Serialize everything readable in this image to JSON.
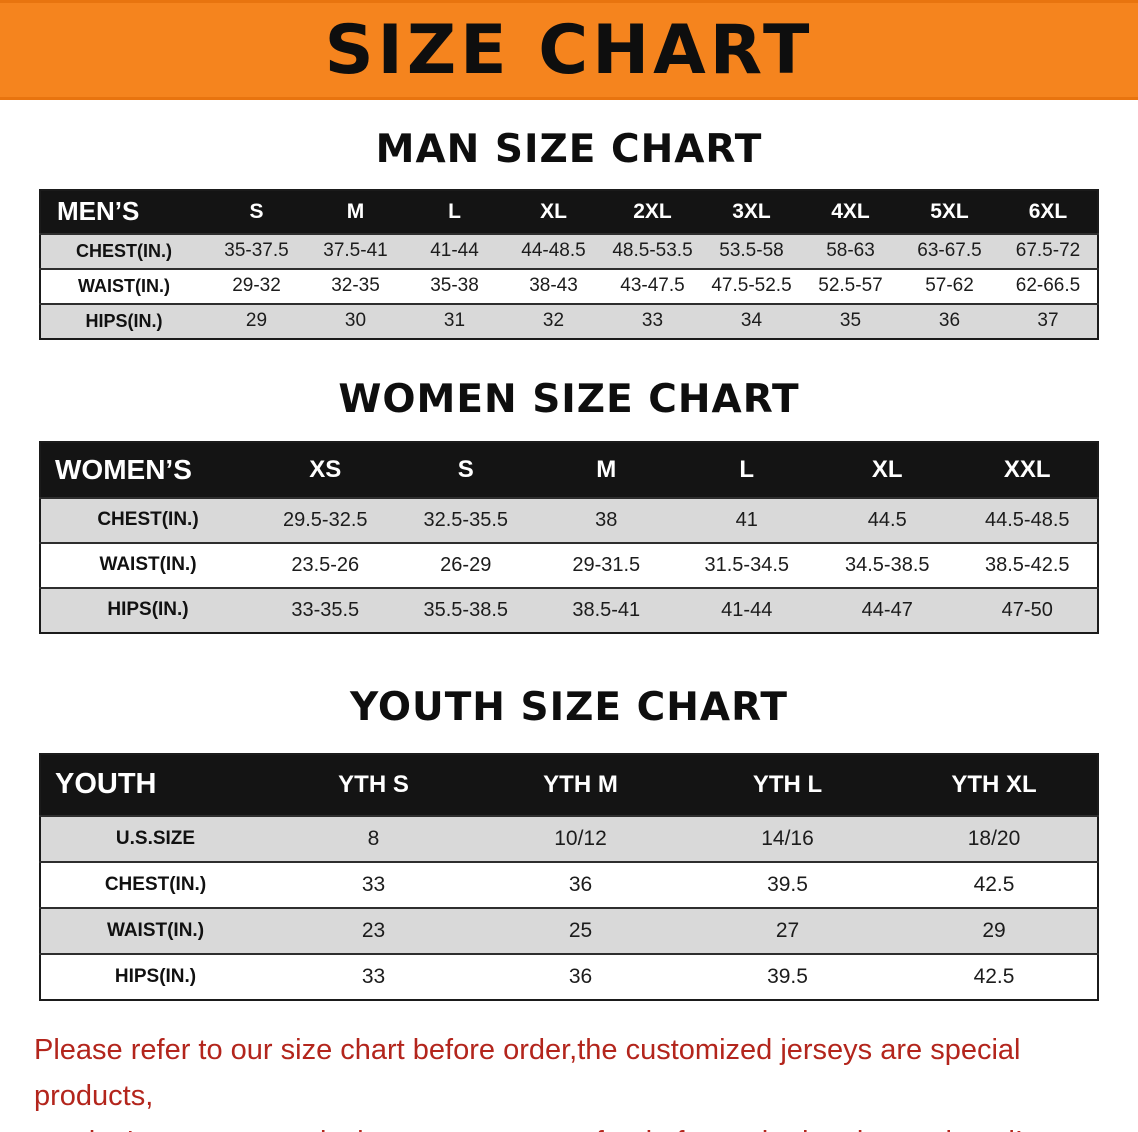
{
  "banner": {
    "title": "SIZE CHART"
  },
  "colors": {
    "banner_bg": "#f5841e",
    "table_header_bg": "#141414",
    "row_alt_bg": "#d9d9d9",
    "notice_text": "#b3251c"
  },
  "sections": [
    {
      "heading": "MAN SIZE CHART",
      "table": {
        "header": [
          "MEN’S",
          "S",
          "M",
          "L",
          "XL",
          "2XL",
          "3XL",
          "4XL",
          "5XL",
          "6XL"
        ],
        "rows": [
          {
            "label": "CHEST(IN.)",
            "values": [
              "35-37.5",
              "37.5-41",
              "41-44",
              "44-48.5",
              "48.5-53.5",
              "53.5-58",
              "58-63",
              "63-67.5",
              "67.5-72"
            ]
          },
          {
            "label": "WAIST(IN.)",
            "values": [
              "29-32",
              "32-35",
              "35-38",
              "38-43",
              "43-47.5",
              "47.5-52.5",
              "52.5-57",
              "57-62",
              "62-66.5"
            ]
          },
          {
            "label": "HIPS(IN.)",
            "values": [
              "29",
              "30",
              "31",
              "32",
              "33",
              "34",
              "35",
              "36",
              "37"
            ]
          }
        ]
      }
    },
    {
      "heading": "WOMEN SIZE CHART",
      "table": {
        "header": [
          "WOMEN’S",
          "XS",
          "S",
          "M",
          "L",
          "XL",
          "XXL"
        ],
        "rows": [
          {
            "label": "CHEST(IN.)",
            "values": [
              "29.5-32.5",
              "32.5-35.5",
              "38",
              "41",
              "44.5",
              "44.5-48.5"
            ]
          },
          {
            "label": "WAIST(IN.)",
            "values": [
              "23.5-26",
              "26-29",
              "29-31.5",
              "31.5-34.5",
              "34.5-38.5",
              "38.5-42.5"
            ]
          },
          {
            "label": "HIPS(IN.)",
            "values": [
              "33-35.5",
              "35.5-38.5",
              "38.5-41",
              "41-44",
              "44-47",
              "47-50"
            ]
          }
        ]
      }
    },
    {
      "heading": "YOUTH SIZE CHART",
      "table": {
        "header": [
          "YOUTH",
          "YTH S",
          "YTH M",
          "YTH L",
          "YTH XL"
        ],
        "rows": [
          {
            "label": "U.S.SIZE",
            "values": [
              "8",
              "10/12",
              "14/16",
              "18/20"
            ]
          },
          {
            "label": "CHEST(IN.)",
            "values": [
              "33",
              "36",
              "39.5",
              "42.5"
            ]
          },
          {
            "label": "WAIST(IN.)",
            "values": [
              "23",
              "25",
              "27",
              "29"
            ]
          },
          {
            "label": "HIPS(IN.)",
            "values": [
              "33",
              "36",
              "39.5",
              "42.5"
            ]
          }
        ]
      }
    }
  ],
  "footer": {
    "line1": "Please refer to our size chart before order,the customized jerseys are special products,",
    "line2": "we don't accept cancel, change, teturn or refund after order has been placed!"
  }
}
